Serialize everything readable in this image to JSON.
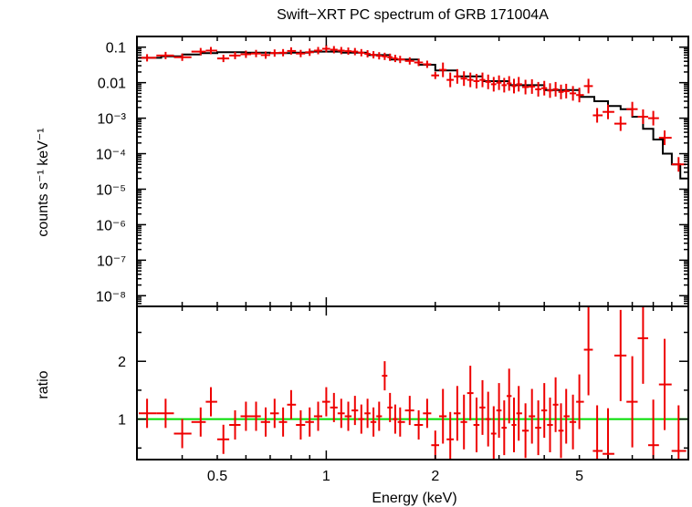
{
  "title": "Swift−XRT PC spectrum of GRB 171004A",
  "colors": {
    "data": "#ee0000",
    "model": "#000000",
    "unity": "#00dd00",
    "axes": "#000000"
  },
  "chart_data": [
    {
      "type": "scatter",
      "panel": "spectrum",
      "ylabel": "counts s⁻¹ keV⁻¹",
      "xlabel": "",
      "xscale": "log",
      "yscale": "log",
      "xlim": [
        0.3,
        10
      ],
      "ylim": [
        5e-09,
        0.2
      ],
      "ytick_labels": [
        {
          "v": 0.1,
          "t": "0.1"
        },
        {
          "v": 0.01,
          "t": "0.01"
        },
        {
          "v": 0.001,
          "t": "10⁻³"
        },
        {
          "v": 0.0001,
          "t": "10⁻⁴"
        },
        {
          "v": 1e-05,
          "t": "10⁻⁵"
        },
        {
          "v": 1e-06,
          "t": "10⁻⁶"
        },
        {
          "v": 1e-07,
          "t": "10⁻⁷"
        },
        {
          "v": 1e-08,
          "t": "10⁻⁸"
        }
      ],
      "model": [
        [
          0.3,
          0.05
        ],
        [
          0.35,
          0.055
        ],
        [
          0.4,
          0.062
        ],
        [
          0.45,
          0.068
        ],
        [
          0.5,
          0.072
        ],
        [
          0.6,
          0.07
        ],
        [
          0.7,
          0.068
        ],
        [
          0.8,
          0.07
        ],
        [
          0.9,
          0.075
        ],
        [
          1.0,
          0.075
        ],
        [
          1.1,
          0.07
        ],
        [
          1.3,
          0.06
        ],
        [
          1.5,
          0.045
        ],
        [
          1.8,
          0.032
        ],
        [
          2.0,
          0.022
        ],
        [
          2.3,
          0.015
        ],
        [
          2.7,
          0.011
        ],
        [
          3.2,
          0.0085
        ],
        [
          4.0,
          0.0062
        ],
        [
          5.0,
          0.004
        ],
        [
          5.5,
          0.003
        ],
        [
          6.0,
          0.0022
        ],
        [
          6.5,
          0.0018
        ],
        [
          7.0,
          0.0011
        ],
        [
          7.5,
          0.0005
        ],
        [
          8.0,
          0.00025
        ],
        [
          8.5,
          0.0001
        ],
        [
          9.0,
          5e-05
        ],
        [
          9.5,
          2e-05
        ],
        [
          10.0,
          8e-06
        ]
      ],
      "points": [
        [
          0.32,
          0.05
        ],
        [
          0.36,
          0.058
        ],
        [
          0.4,
          0.052
        ],
        [
          0.45,
          0.075
        ],
        [
          0.48,
          0.08
        ],
        [
          0.52,
          0.048
        ],
        [
          0.56,
          0.058
        ],
        [
          0.6,
          0.063
        ],
        [
          0.64,
          0.066
        ],
        [
          0.68,
          0.06
        ],
        [
          0.72,
          0.068
        ],
        [
          0.76,
          0.07
        ],
        [
          0.8,
          0.078
        ],
        [
          0.85,
          0.066
        ],
        [
          0.9,
          0.072
        ],
        [
          0.95,
          0.08
        ],
        [
          1.0,
          0.09
        ],
        [
          1.05,
          0.085
        ],
        [
          1.1,
          0.08
        ],
        [
          1.15,
          0.077
        ],
        [
          1.2,
          0.075
        ],
        [
          1.25,
          0.07
        ],
        [
          1.3,
          0.065
        ],
        [
          1.35,
          0.061
        ],
        [
          1.4,
          0.057
        ],
        [
          1.45,
          0.055
        ],
        [
          1.5,
          0.052
        ],
        [
          1.55,
          0.048
        ],
        [
          1.6,
          0.045
        ],
        [
          1.7,
          0.041
        ],
        [
          1.8,
          0.037
        ],
        [
          1.9,
          0.033
        ],
        [
          2.0,
          0.016
        ],
        [
          2.1,
          0.023
        ],
        [
          2.2,
          0.012
        ],
        [
          2.3,
          0.015
        ],
        [
          2.4,
          0.013
        ],
        [
          2.5,
          0.012
        ],
        [
          2.6,
          0.011
        ],
        [
          2.7,
          0.012
        ],
        [
          2.8,
          0.0105
        ],
        [
          2.9,
          0.009
        ],
        [
          3.0,
          0.01
        ],
        [
          3.1,
          0.0085
        ],
        [
          3.2,
          0.0095
        ],
        [
          3.3,
          0.008
        ],
        [
          3.4,
          0.009
        ],
        [
          3.55,
          0.0075
        ],
        [
          3.7,
          0.0078
        ],
        [
          3.85,
          0.0065
        ],
        [
          4.0,
          0.007
        ],
        [
          4.15,
          0.006
        ],
        [
          4.3,
          0.0065
        ],
        [
          4.45,
          0.0055
        ],
        [
          4.6,
          0.0058
        ],
        [
          4.8,
          0.005
        ],
        [
          5.0,
          0.0045
        ],
        [
          5.3,
          0.008
        ],
        [
          5.6,
          0.0012
        ],
        [
          6.0,
          0.0015
        ],
        [
          6.5,
          0.0007
        ],
        [
          7.0,
          0.0018
        ],
        [
          7.5,
          0.0011
        ],
        [
          8.0,
          0.001
        ],
        [
          8.6,
          0.00028
        ],
        [
          9.4,
          5e-05
        ]
      ]
    },
    {
      "type": "scatter",
      "panel": "ratio",
      "ylabel": "ratio",
      "xlabel": "Energy (keV)",
      "xscale": "log",
      "yscale": "linear",
      "xlim": [
        0.3,
        10
      ],
      "ylim": [
        0.3,
        2.95
      ],
      "xtick_labels": [
        {
          "v": 0.5,
          "t": "0.5"
        },
        {
          "v": 1,
          "t": "1"
        },
        {
          "v": 2,
          "t": "2"
        },
        {
          "v": 5,
          "t": "5"
        }
      ],
      "ytick_labels": [
        {
          "v": 1,
          "t": "1"
        },
        {
          "v": 2,
          "t": "2"
        }
      ],
      "unity_line": 1,
      "points": [
        [
          0.32,
          1.1
        ],
        [
          0.36,
          1.1
        ],
        [
          0.4,
          0.75
        ],
        [
          0.45,
          0.95
        ],
        [
          0.48,
          1.3
        ],
        [
          0.52,
          0.65
        ],
        [
          0.56,
          0.9
        ],
        [
          0.6,
          1.05
        ],
        [
          0.64,
          1.05
        ],
        [
          0.68,
          0.95
        ],
        [
          0.72,
          1.1
        ],
        [
          0.76,
          0.95
        ],
        [
          0.8,
          1.25
        ],
        [
          0.85,
          0.9
        ],
        [
          0.9,
          0.95
        ],
        [
          0.95,
          1.05
        ],
        [
          1.0,
          1.3
        ],
        [
          1.05,
          1.2
        ],
        [
          1.1,
          1.1
        ],
        [
          1.15,
          1.05
        ],
        [
          1.2,
          1.15
        ],
        [
          1.25,
          1.0
        ],
        [
          1.3,
          1.1
        ],
        [
          1.35,
          0.95
        ],
        [
          1.4,
          1.05
        ],
        [
          1.45,
          1.75
        ],
        [
          1.5,
          1.2
        ],
        [
          1.55,
          1.0
        ],
        [
          1.6,
          0.95
        ],
        [
          1.7,
          1.15
        ],
        [
          1.8,
          0.9
        ],
        [
          1.9,
          1.1
        ],
        [
          2.0,
          0.55
        ],
        [
          2.1,
          1.05
        ],
        [
          2.2,
          0.65
        ],
        [
          2.3,
          1.1
        ],
        [
          2.4,
          0.95
        ],
        [
          2.5,
          1.45
        ],
        [
          2.6,
          0.9
        ],
        [
          2.7,
          1.2
        ],
        [
          2.8,
          1.0
        ],
        [
          2.9,
          0.75
        ],
        [
          3.0,
          1.15
        ],
        [
          3.1,
          0.85
        ],
        [
          3.2,
          1.4
        ],
        [
          3.3,
          0.9
        ],
        [
          3.4,
          1.1
        ],
        [
          3.55,
          0.8
        ],
        [
          3.7,
          1.05
        ],
        [
          3.85,
          0.85
        ],
        [
          4.0,
          1.15
        ],
        [
          4.15,
          0.9
        ],
        [
          4.3,
          1.25
        ],
        [
          4.45,
          0.8
        ],
        [
          4.6,
          1.05
        ],
        [
          4.8,
          0.95
        ],
        [
          5.0,
          1.3
        ],
        [
          5.3,
          2.2
        ],
        [
          5.6,
          0.45
        ],
        [
          6.0,
          0.4
        ],
        [
          6.5,
          2.1
        ],
        [
          7.0,
          1.3
        ],
        [
          7.5,
          2.4
        ],
        [
          8.0,
          0.55
        ],
        [
          8.6,
          1.6
        ],
        [
          9.4,
          0.45
        ]
      ]
    }
  ]
}
